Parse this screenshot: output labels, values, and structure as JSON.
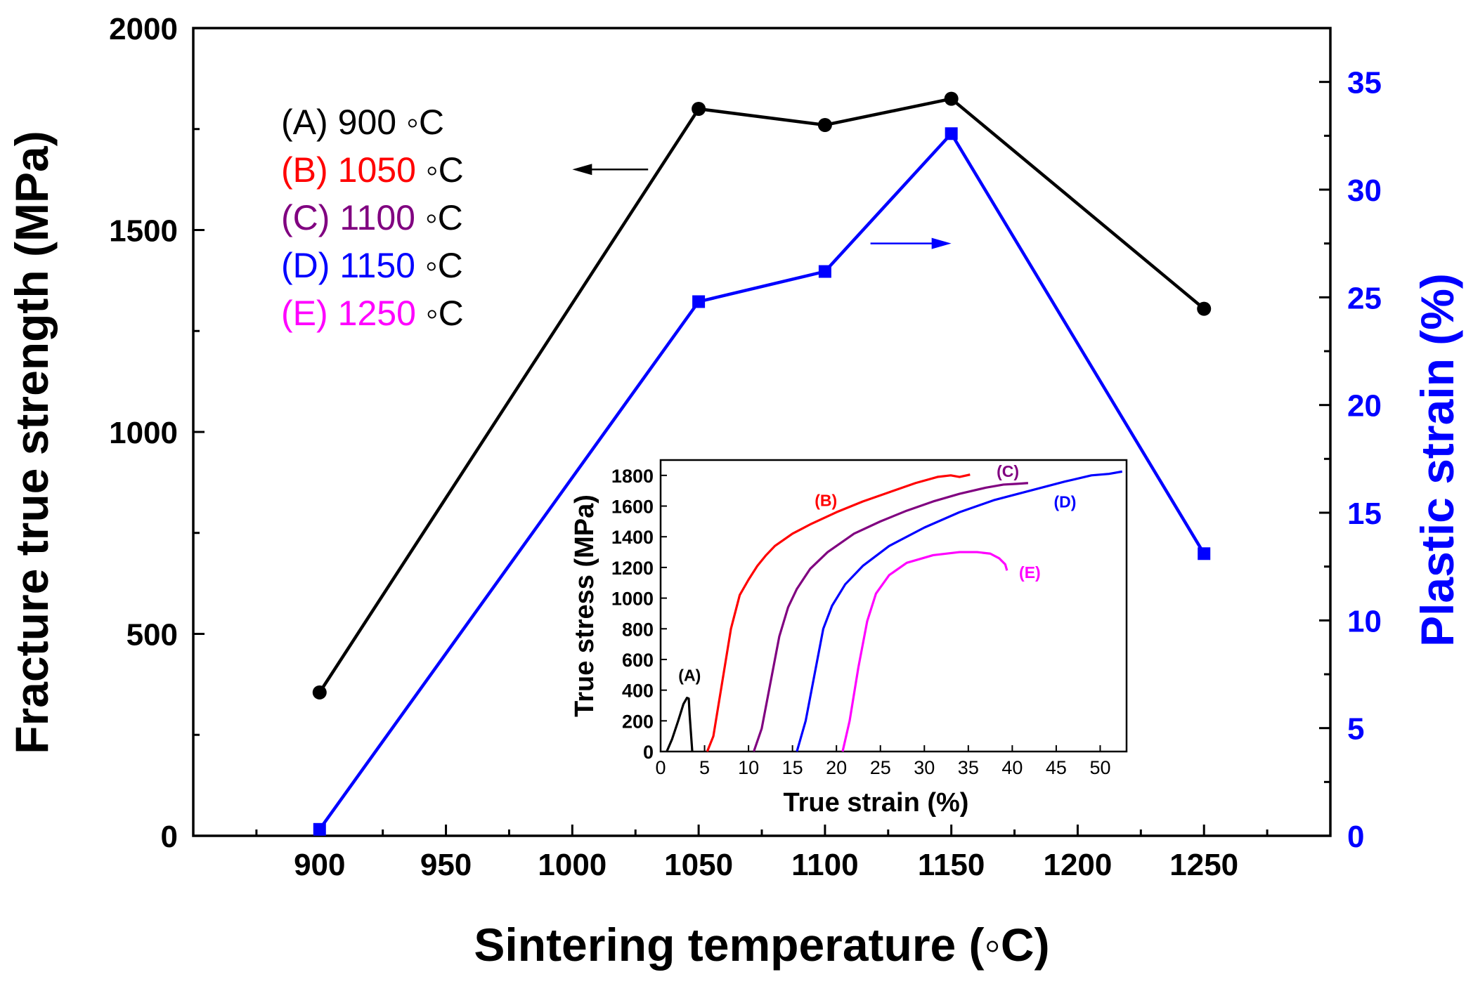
{
  "chart_data": [
    {
      "type": "line",
      "xlabel": "Sintering temperature (◦C)",
      "ylabel": "Fracture true strength (MPa)",
      "y2label": "Plastic strain (%)",
      "xlim": [
        850,
        1300
      ],
      "ylim": [
        0,
        2000
      ],
      "y2lim": [
        0,
        37.5
      ],
      "xticks": [
        900,
        950,
        1000,
        1050,
        1100,
        1150,
        1200,
        1250
      ],
      "yticks": [
        0,
        500,
        1000,
        1500,
        2000
      ],
      "y2ticks": [
        0,
        5,
        10,
        15,
        20,
        25,
        30,
        35
      ],
      "legend": {
        "position": "top-left",
        "items": [
          {
            "prefix": "(A)",
            "value": "900",
            "unit": "◦C",
            "color": "#000000"
          },
          {
            "prefix": "(B)",
            "value": "1050",
            "unit": "◦C",
            "color": "#ff0000"
          },
          {
            "prefix": "(C)",
            "value": "1100",
            "unit": "◦C",
            "color": "#800080"
          },
          {
            "prefix": "(D)",
            "value": "1150",
            "unit": "◦C",
            "color": "#0000ff"
          },
          {
            "prefix": "(E)",
            "value": "1250",
            "unit": "◦C",
            "color": "#ff00ff"
          }
        ]
      },
      "series": [
        {
          "axis": "left",
          "color": "#000000",
          "marker": "circle",
          "x": [
            900,
            1050,
            1100,
            1150,
            1250
          ],
          "y": [
            355,
            1800,
            1760,
            1825,
            1305
          ]
        },
        {
          "axis": "right",
          "color": "#0000ff",
          "marker": "square",
          "x": [
            900,
            1050,
            1100,
            1150,
            1250
          ],
          "y": [
            0.3,
            24.8,
            26.2,
            32.6,
            13.1
          ]
        }
      ],
      "arrows": [
        {
          "from": [
            1030,
            1650
          ],
          "to": [
            1000,
            1650
          ],
          "color": "#000000",
          "axis": "left"
        },
        {
          "from": [
            1118,
            27.5
          ],
          "to": [
            1150,
            27.5
          ],
          "color": "#0000ff",
          "axis": "right"
        }
      ]
    },
    {
      "type": "line",
      "role": "inset",
      "xlabel": "True strain (%)",
      "ylabel": "True stress (MPa)",
      "xlim": [
        0,
        53
      ],
      "ylim": [
        0,
        1900
      ],
      "xticks": [
        0,
        5,
        10,
        15,
        20,
        25,
        30,
        35,
        40,
        45,
        50
      ],
      "yticks": [
        0,
        200,
        400,
        600,
        800,
        1000,
        1200,
        1400,
        1600,
        1800
      ],
      "series": [
        {
          "name": "(A)",
          "color": "#000000",
          "label_at": [
            3.3,
            460
          ],
          "x": [
            0.7,
            1.3,
            2.0,
            2.6,
            3.0,
            3.2,
            3.3,
            3.5,
            3.6
          ],
          "y": [
            0,
            80,
            200,
            310,
            350,
            345,
            240,
            80,
            0
          ]
        },
        {
          "name": "(B)",
          "color": "#ff0000",
          "label_at": [
            18.8,
            1600
          ],
          "x": [
            5.3,
            6.0,
            7.0,
            8.0,
            9.0,
            10.0,
            11.0,
            12.0,
            13.0,
            15.0,
            17.0,
            20.0,
            23.0,
            26.0,
            29.0,
            31.5,
            33.0,
            34.0,
            35.2
          ],
          "y": [
            0,
            100,
            450,
            800,
            1020,
            1120,
            1210,
            1280,
            1340,
            1420,
            1480,
            1560,
            1630,
            1690,
            1750,
            1790,
            1800,
            1790,
            1805
          ]
        },
        {
          "name": "(C)",
          "color": "#800080",
          "label_at": [
            39.5,
            1790
          ],
          "x": [
            10.6,
            11.5,
            12.5,
            13.5,
            14.5,
            15.5,
            17.0,
            19.0,
            22.0,
            25.0,
            28.0,
            31.0,
            34.0,
            37.0,
            39.0,
            40.5,
            41.8
          ],
          "y": [
            0,
            150,
            450,
            750,
            940,
            1060,
            1190,
            1300,
            1420,
            1500,
            1570,
            1630,
            1680,
            1720,
            1740,
            1745,
            1750
          ]
        },
        {
          "name": "(D)",
          "color": "#0000ff",
          "label_at": [
            46.0,
            1590
          ],
          "x": [
            15.5,
            16.5,
            17.5,
            18.5,
            19.5,
            21.0,
            23.0,
            26.0,
            30.0,
            34.0,
            38.0,
            42.0,
            46.0,
            49.0,
            51.0,
            52.5
          ],
          "y": [
            0,
            200,
            500,
            800,
            950,
            1090,
            1210,
            1340,
            1460,
            1560,
            1640,
            1700,
            1760,
            1800,
            1810,
            1825
          ]
        },
        {
          "name": "(E)",
          "color": "#ff00ff",
          "label_at": [
            42.0,
            1130
          ],
          "x": [
            20.7,
            21.5,
            22.5,
            23.5,
            24.5,
            26.0,
            28.0,
            31.0,
            34.0,
            36.0,
            37.5,
            38.5,
            39.2,
            39.4
          ],
          "y": [
            0,
            200,
            550,
            850,
            1030,
            1150,
            1230,
            1280,
            1300,
            1300,
            1290,
            1260,
            1220,
            1180
          ]
        }
      ]
    }
  ]
}
